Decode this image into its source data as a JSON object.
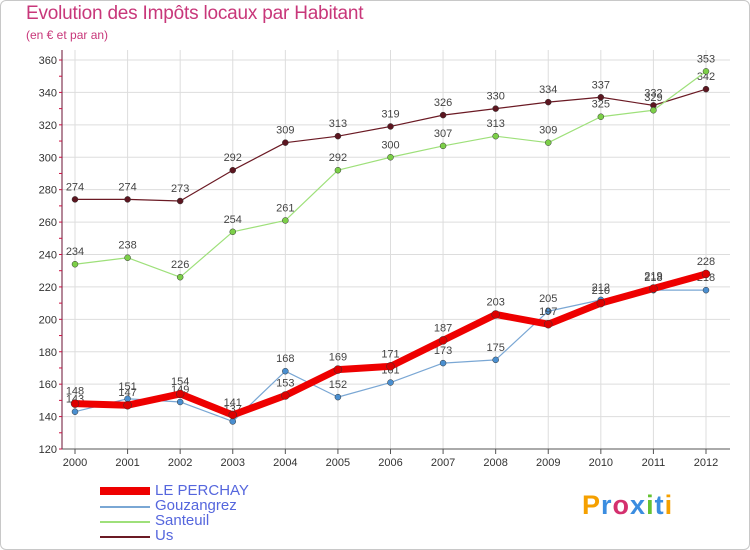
{
  "title": "Evolution des Impôts locaux par Habitant",
  "subtitle": "(en € et par an)",
  "logo": {
    "text": "Proxiti",
    "colors": [
      "#f5a000",
      "#3b8de0",
      "#d4306e",
      "#3b8de0",
      "#66c232",
      "#3b8de0",
      "#f5a000"
    ]
  },
  "colors": {
    "title": "#c8377a",
    "axis": "#6a0f30",
    "grid": "#dddddd",
    "legend_text": "#5566dd"
  },
  "chart_data": {
    "type": "line",
    "title": "Evolution des Impôts locaux par Habitant",
    "subtitle": "(en € et par an)",
    "xlabel": "",
    "ylabel": "",
    "ylim": [
      120,
      360
    ],
    "yticks": [
      120,
      140,
      160,
      180,
      200,
      220,
      240,
      260,
      280,
      300,
      320,
      340,
      360
    ],
    "categories": [
      "2000",
      "2001",
      "2002",
      "2003",
      "2004",
      "2005",
      "2006",
      "2007",
      "2008",
      "2009",
      "2010",
      "2011",
      "2012"
    ],
    "grid": true,
    "legend_position": "bottom-left",
    "series": [
      {
        "name": "Us",
        "color": "#6b1a24",
        "marker_fill": "#5c1620",
        "width": 1.2,
        "values": [
          274,
          274,
          273,
          292,
          309,
          313,
          319,
          326,
          330,
          334,
          337,
          332,
          342
        ]
      },
      {
        "name": "Santeuil",
        "color": "#9ee07a",
        "marker_fill": "#7ccf48",
        "width": 1.2,
        "values": [
          234,
          238,
          226,
          254,
          261,
          292,
          300,
          307,
          313,
          309,
          325,
          329,
          353
        ]
      },
      {
        "name": "Gouzangrez",
        "color": "#7aa7d4",
        "marker_fill": "#4a8fd0",
        "width": 1.2,
        "values": [
          143,
          151,
          149,
          137,
          168,
          152,
          161,
          173,
          175,
          205,
          212,
          218,
          218
        ]
      },
      {
        "name": "LE PERCHAY",
        "color": "#ee0000",
        "marker_fill": "#dd0000",
        "width": 7,
        "values": [
          148,
          147,
          154,
          141,
          153,
          169,
          171,
          187,
          203,
          197,
          210,
          219,
          228
        ]
      }
    ],
    "legend": [
      "LE PERCHAY",
      "Gouzangrez",
      "Santeuil",
      "Us"
    ]
  }
}
